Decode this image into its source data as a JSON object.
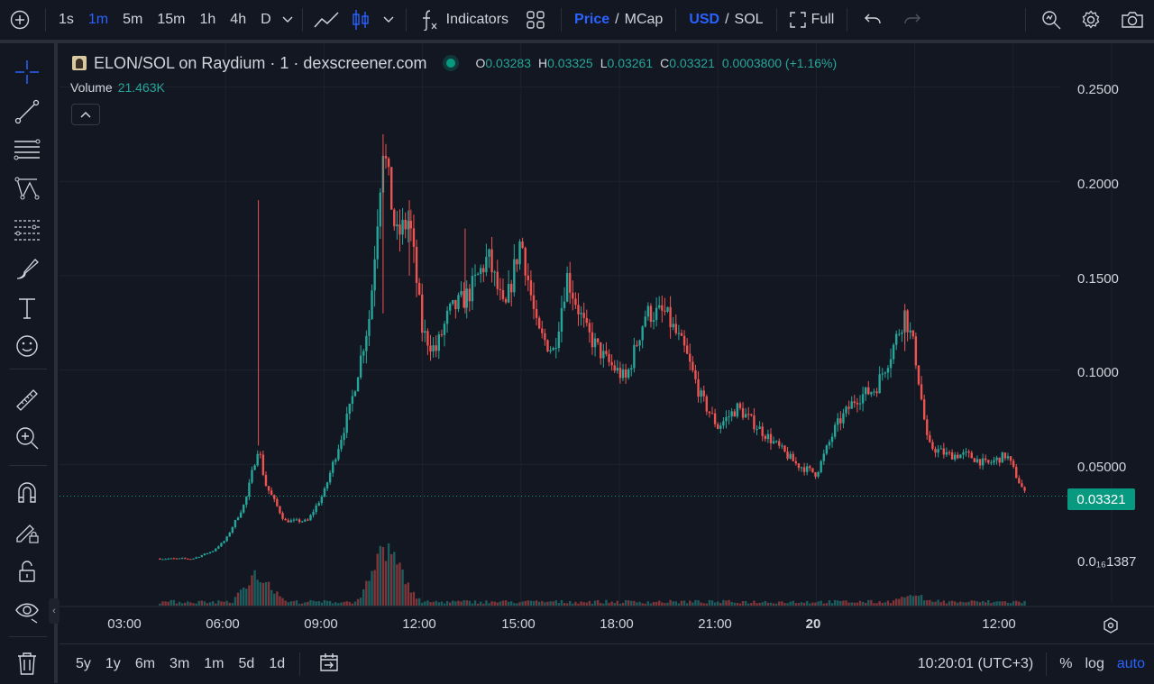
{
  "toolbar": {
    "timeframes": [
      "1s",
      "1m",
      "5m",
      "15m",
      "1h",
      "4h",
      "D"
    ],
    "active_timeframe": "1m",
    "indicators_label": "Indicators",
    "price_label": "Price",
    "mcap_label": "MCap",
    "usd_label": "USD",
    "sol_label": "SOL",
    "slash": "/",
    "full_label": "Full"
  },
  "legend": {
    "title": "ELON/SOL on Raydium · 1 · dexscreener.com",
    "o_key": "O",
    "o_val": "0.03283",
    "h_key": "H",
    "h_val": "0.03325",
    "l_key": "L",
    "l_val": "0.03261",
    "c_key": "C",
    "c_val": "0.03321",
    "change": "0.0003800 (+1.16%)",
    "volume_label": "Volume",
    "volume_value": "21.463K"
  },
  "price_axis": {
    "ticks": [
      "0.2500",
      "0.2000",
      "0.1500",
      "0.1000",
      "0.05000",
      "0.0₁₆1387"
    ],
    "current_price": "0.03321"
  },
  "time_axis": {
    "ticks": [
      "03:00",
      "06:00",
      "09:00",
      "12:00",
      "15:00",
      "18:00",
      "21:00",
      "20",
      "12:00"
    ]
  },
  "bottombar": {
    "ranges": [
      "5y",
      "1y",
      "6m",
      "3m",
      "1m",
      "5d",
      "1d"
    ],
    "clock": "10:20:01 (UTC+3)",
    "percent_label": "%",
    "log_label": "log",
    "auto_label": "auto"
  },
  "colors": {
    "background": "#131722",
    "up": "#26a69a",
    "down": "#ef5350",
    "accent": "#2962ff",
    "price_tag": "#089981"
  },
  "chart_data": {
    "type": "candlestick",
    "title": "ELON/SOL on Raydium · 1 · dexscreener.com",
    "ylabel": "",
    "ylim": [
      0.0,
      0.27
    ],
    "x_ticks": [
      "03:00",
      "06:00",
      "09:00",
      "12:00",
      "15:00",
      "18:00",
      "21:00",
      "20",
      "12:00"
    ],
    "price_trend": [
      [
        1.0,
        0.0
      ],
      [
        2.0,
        0.0
      ],
      [
        2.6,
        0.004
      ],
      [
        3.0,
        0.01
      ],
      [
        3.6,
        0.03
      ],
      [
        4.0,
        0.06
      ],
      [
        4.2,
        0.04
      ],
      [
        4.8,
        0.02
      ],
      [
        5.5,
        0.02
      ],
      [
        6.0,
        0.035
      ],
      [
        6.8,
        0.08
      ],
      [
        7.4,
        0.13
      ],
      [
        7.8,
        0.22
      ],
      [
        8.2,
        0.17
      ],
      [
        8.6,
        0.18
      ],
      [
        9.0,
        0.12
      ],
      [
        9.4,
        0.11
      ],
      [
        9.8,
        0.13
      ],
      [
        10.4,
        0.14
      ],
      [
        11.0,
        0.16
      ],
      [
        11.5,
        0.13
      ],
      [
        12.0,
        0.17
      ],
      [
        12.5,
        0.12
      ],
      [
        13.0,
        0.11
      ],
      [
        13.4,
        0.15
      ],
      [
        14.0,
        0.12
      ],
      [
        14.6,
        0.105
      ],
      [
        15.2,
        0.095
      ],
      [
        15.8,
        0.13
      ],
      [
        16.4,
        0.13
      ],
      [
        17.0,
        0.11
      ],
      [
        17.5,
        0.085
      ],
      [
        18.0,
        0.07
      ],
      [
        18.6,
        0.08
      ],
      [
        19.2,
        0.07
      ],
      [
        19.8,
        0.06
      ],
      [
        20.4,
        0.05
      ],
      [
        21.0,
        0.045
      ],
      [
        21.6,
        0.07
      ],
      [
        22.2,
        0.085
      ],
      [
        22.8,
        0.09
      ],
      [
        23.3,
        0.11
      ],
      [
        23.7,
        0.13
      ],
      [
        24.0,
        0.11
      ],
      [
        24.4,
        0.06
      ],
      [
        25.0,
        0.055
      ],
      [
        25.6,
        0.055
      ],
      [
        26.2,
        0.05
      ],
      [
        26.8,
        0.055
      ],
      [
        27.2,
        0.04
      ],
      [
        27.4,
        0.033
      ]
    ],
    "volume_peaks": [
      [
        4.0,
        21.0
      ],
      [
        7.8,
        30.0
      ],
      [
        8.2,
        18.0
      ],
      [
        24.0,
        4.0
      ]
    ],
    "last_price": 0.03321
  }
}
